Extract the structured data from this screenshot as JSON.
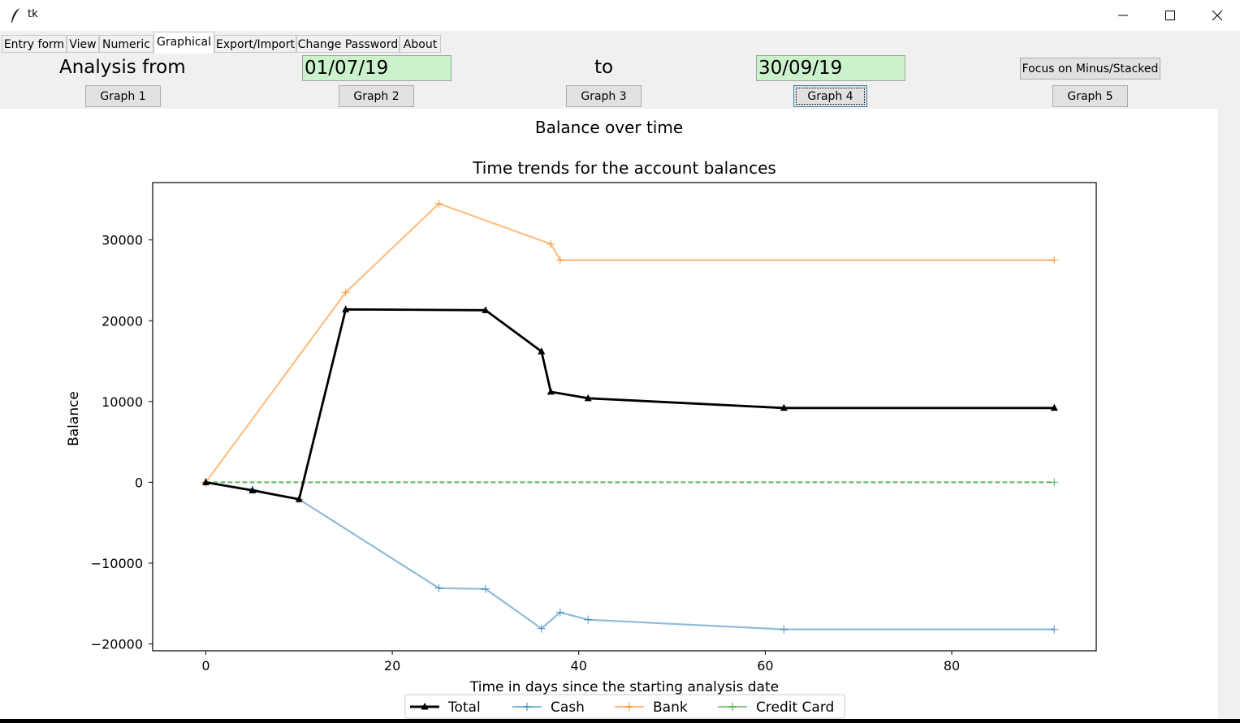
{
  "window": {
    "title": "tk"
  },
  "tabs": [
    "Entry form",
    "View",
    "Numeric",
    "Graphical",
    "Export/Import",
    "Change Password",
    "About"
  ],
  "controls": {
    "analysis_from_label": "Analysis from",
    "from_date": "01/07/19",
    "to_label": "to",
    "to_date": "30/09/19",
    "focus_button": "Focus on Minus/Stacked",
    "graph_buttons": [
      "Graph 1",
      "Graph 2",
      "Graph 3",
      "Graph 4",
      "Graph 5"
    ]
  },
  "chart_data": {
    "type": "line",
    "suptitle": "Balance over time",
    "title": "Time trends for the account balances",
    "xlabel": "Time in days since the starting analysis date",
    "ylabel": "Balance",
    "xlim": [
      -5.7,
      95.5
    ],
    "ylim": [
      -20850,
      37100
    ],
    "xticks": [
      0,
      20,
      40,
      60,
      80
    ],
    "yticks": [
      -20000,
      -10000,
      0,
      10000,
      20000,
      30000
    ],
    "ytick_labels": [
      "−20000",
      "−10000",
      "0",
      "10000",
      "20000",
      "30000"
    ],
    "legend_position": "bottom-center",
    "series": [
      {
        "name": "Total",
        "color": "#000000",
        "marker": "triangle",
        "x": [
          0,
          5,
          10,
          15,
          30,
          36,
          37,
          41,
          62,
          91
        ],
        "y": [
          0,
          -1000,
          -2100,
          21400,
          21300,
          16200,
          11200,
          10400,
          9200,
          9200
        ]
      },
      {
        "name": "Cash",
        "color": "#1f77b4",
        "marker": "plus",
        "x": [
          0,
          5,
          10,
          25,
          30,
          36,
          38,
          41,
          62,
          91
        ],
        "y": [
          0,
          -900,
          -2100,
          -13100,
          -13200,
          -18100,
          -16100,
          -17000,
          -18200,
          -18200
        ]
      },
      {
        "name": "Bank",
        "color": "#ff7f0e",
        "marker": "plus",
        "x": [
          0,
          15,
          25,
          37,
          38,
          91
        ],
        "y": [
          0,
          23500,
          34500,
          29500,
          27500,
          27500
        ]
      },
      {
        "name": "Credit Card",
        "color": "#2ca02c",
        "marker": "plus",
        "x": [
          0,
          91
        ],
        "y": [
          0,
          0
        ]
      }
    ]
  }
}
